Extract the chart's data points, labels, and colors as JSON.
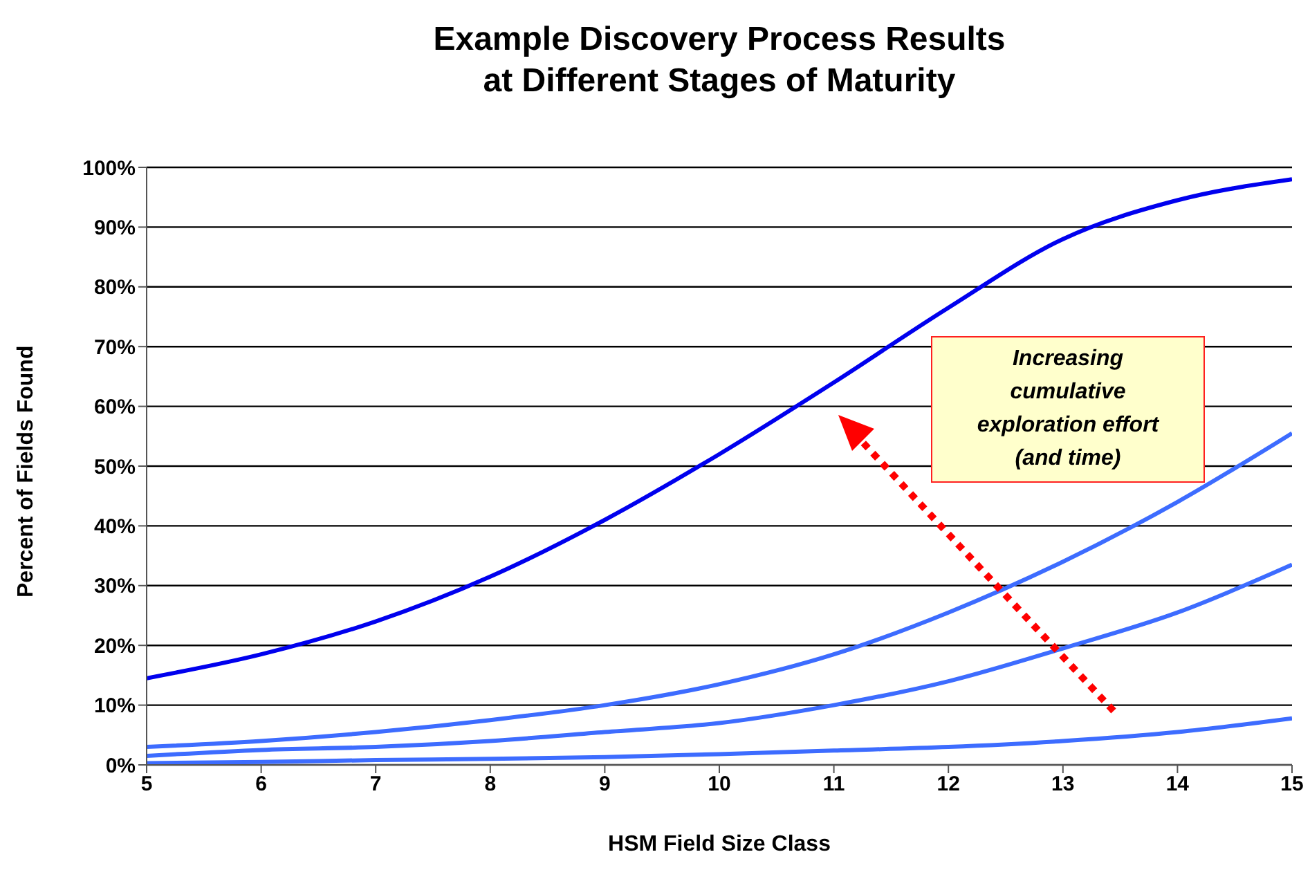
{
  "chart_data": {
    "type": "line",
    "title": "Example Discovery Process Results\nat Different Stages of Maturity",
    "xlabel": "HSM Field Size Class",
    "ylabel": "Percent of Fields Found",
    "x": [
      5,
      6,
      7,
      8,
      9,
      10,
      11,
      12,
      13,
      14,
      15
    ],
    "series": [
      {
        "color": "#0000ee",
        "values": [
          14.5,
          18.5,
          24,
          31.5,
          41,
          52,
          64,
          76.5,
          88,
          94.5,
          98
        ]
      },
      {
        "color": "#3d6cff",
        "values": [
          3,
          4,
          5.5,
          7.5,
          10,
          13.5,
          18.5,
          25.5,
          34,
          44,
          55.5
        ]
      },
      {
        "color": "#3d6cff",
        "values": [
          1.5,
          2.5,
          3,
          4,
          5.5,
          7,
          10,
          14,
          19.5,
          25.5,
          33.5
        ]
      },
      {
        "color": "#3d6cff",
        "values": [
          0.3,
          0.5,
          0.8,
          1,
          1.3,
          1.8,
          2.4,
          3,
          4,
          5.5,
          7.8
        ]
      }
    ],
    "xlim": [
      5,
      15
    ],
    "xticks": [
      5,
      6,
      7,
      8,
      9,
      10,
      11,
      12,
      13,
      14,
      15
    ],
    "ylim": [
      0,
      100
    ],
    "yticks": [
      {
        "value": 0,
        "label": "0%"
      },
      {
        "value": 10,
        "label": "10%"
      },
      {
        "value": 20,
        "label": "20%"
      },
      {
        "value": 30,
        "label": "30%"
      },
      {
        "value": 40,
        "label": "40%"
      },
      {
        "value": 50,
        "label": "50%"
      },
      {
        "value": 60,
        "label": "60%"
      },
      {
        "value": 70,
        "label": "70%"
      },
      {
        "value": 80,
        "label": "80%"
      },
      {
        "value": 90,
        "label": "90%"
      },
      {
        "value": 100,
        "label": "100%"
      }
    ],
    "grid": "y",
    "marker": "none",
    "line_style": "solid",
    "annotations": [
      "Increasing cumulative exploration effort (and time)"
    ]
  }
}
